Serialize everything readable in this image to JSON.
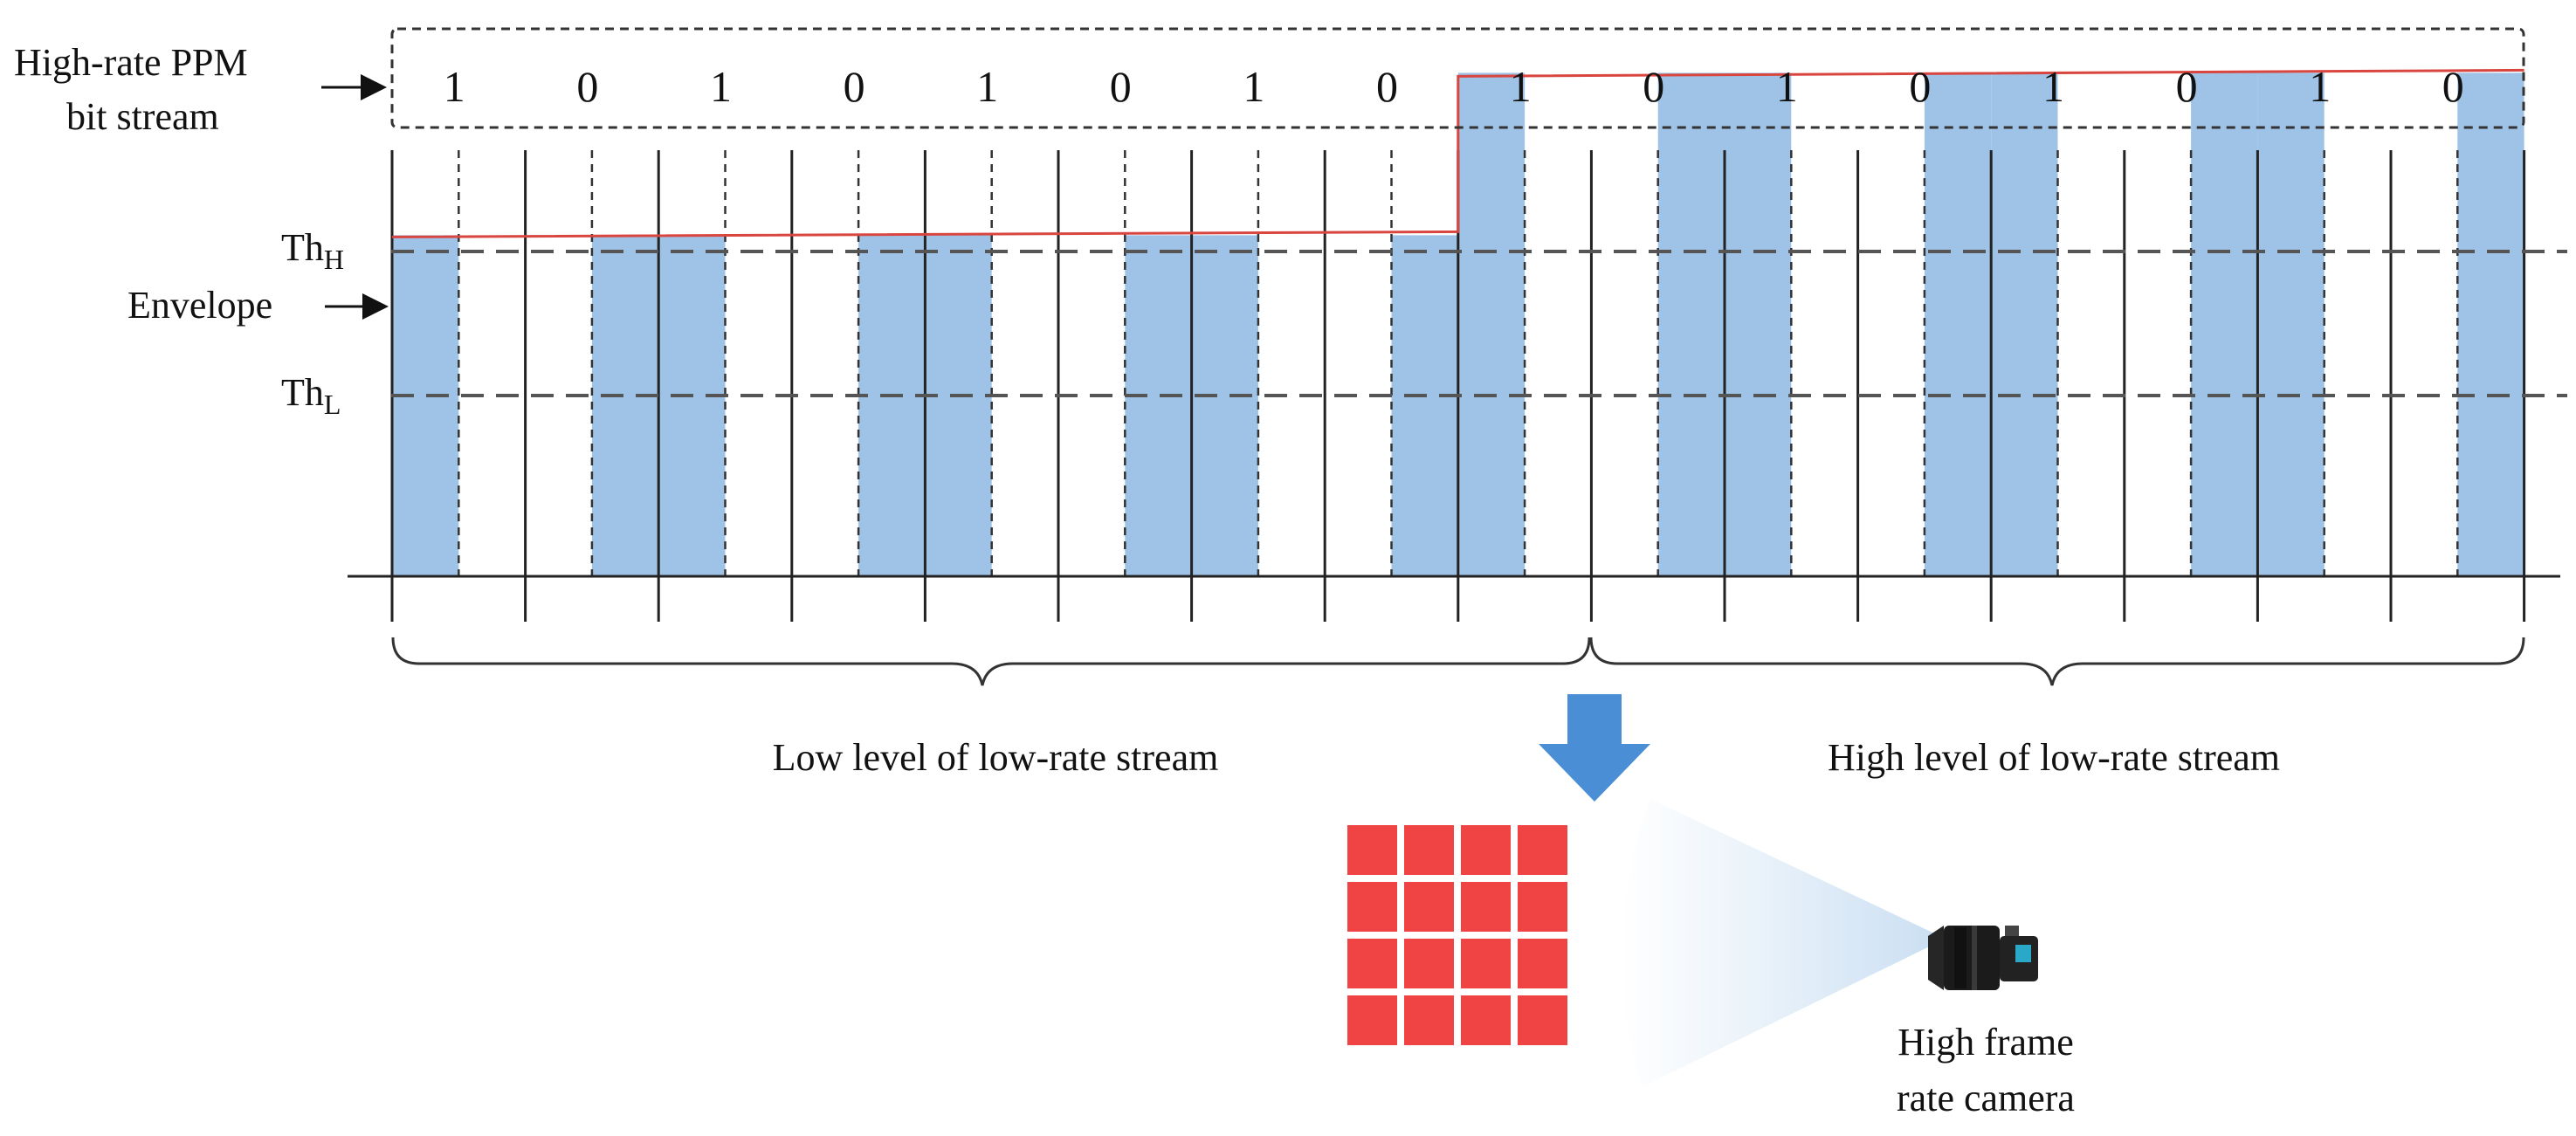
{
  "labels": {
    "stream_title_line1": "High-rate PPM",
    "stream_title_line2": "bit stream",
    "th_high_main": "Th",
    "th_high_sub": "H",
    "th_low_main": "Th",
    "th_low_sub": "L",
    "envelope": "Envelope",
    "low_level": "Low level of low-rate stream",
    "high_level": "High level of low-rate stream",
    "camera_line1": "High frame",
    "camera_line2": "rate camera"
  },
  "bits": [
    "1",
    "0",
    "1",
    "0",
    "1",
    "0",
    "1",
    "0",
    "1",
    "0",
    "1",
    "0",
    "1",
    "0",
    "1",
    "0"
  ],
  "signal": {
    "slot_on": [
      1,
      0,
      0,
      1,
      1,
      0,
      0,
      1,
      1,
      0,
      0,
      1,
      1,
      0,
      0,
      1,
      1,
      0,
      0,
      1,
      1,
      0,
      0,
      1,
      1,
      0,
      0,
      1,
      1,
      0,
      0,
      1
    ],
    "low_level_fraction": 0.63,
    "high_level_fraction": 0.93,
    "switch_after_slot": 16
  },
  "camera_icon": "camera-icon",
  "led_array_icon": "led-array-icon",
  "colors": {
    "pulse_fill": "#9fc3e6",
    "envelope_line": "#d9453f",
    "arrow": "#4a8fd6",
    "led": "#f04444",
    "beam": "#c9def2"
  }
}
